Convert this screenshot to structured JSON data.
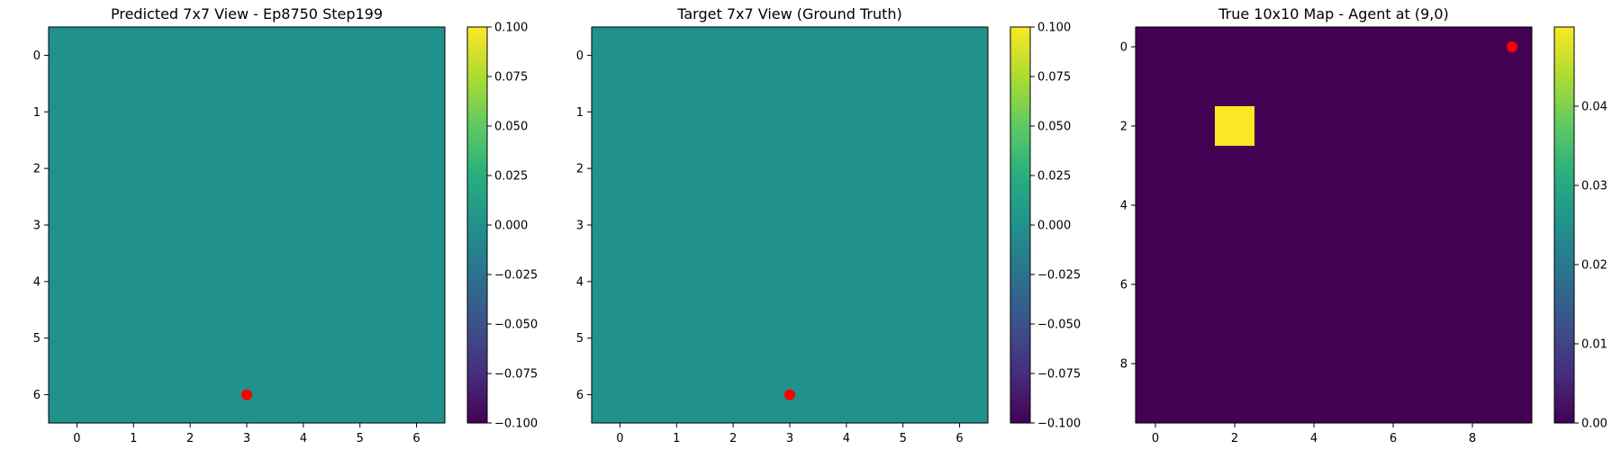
{
  "chart_data": [
    {
      "type": "heatmap",
      "title": "Predicted 7x7 View - Ep8750 Step199",
      "grid_size": 7,
      "values_uniform": 0.0,
      "x_ticks": [
        "0",
        "1",
        "2",
        "3",
        "4",
        "5",
        "6"
      ],
      "y_ticks": [
        "0",
        "1",
        "2",
        "3",
        "4",
        "5",
        "6"
      ],
      "agent_marker": {
        "x": 3,
        "y": 6,
        "color": "#ff0000"
      },
      "colorbar": {
        "min": -0.1,
        "max": 0.1,
        "colormap": "viridis",
        "ticks": [
          {
            "value": 0.1,
            "label": "0.100"
          },
          {
            "value": 0.075,
            "label": "0.075"
          },
          {
            "value": 0.05,
            "label": "0.050"
          },
          {
            "value": 0.025,
            "label": "0.025"
          },
          {
            "value": 0.0,
            "label": "0.000"
          },
          {
            "value": -0.025,
            "label": "−0.025"
          },
          {
            "value": -0.05,
            "label": "−0.050"
          },
          {
            "value": -0.075,
            "label": "−0.075"
          },
          {
            "value": -0.1,
            "label": "−0.100"
          }
        ]
      }
    },
    {
      "type": "heatmap",
      "title": "Target 7x7 View (Ground Truth)",
      "grid_size": 7,
      "values_uniform": 0.0,
      "x_ticks": [
        "0",
        "1",
        "2",
        "3",
        "4",
        "5",
        "6"
      ],
      "y_ticks": [
        "0",
        "1",
        "2",
        "3",
        "4",
        "5",
        "6"
      ],
      "agent_marker": {
        "x": 3,
        "y": 6,
        "color": "#ff0000"
      },
      "colorbar": {
        "min": -0.1,
        "max": 0.1,
        "colormap": "viridis",
        "ticks": [
          {
            "value": 0.1,
            "label": "0.100"
          },
          {
            "value": 0.075,
            "label": "0.075"
          },
          {
            "value": 0.05,
            "label": "0.050"
          },
          {
            "value": 0.025,
            "label": "0.025"
          },
          {
            "value": 0.0,
            "label": "0.000"
          },
          {
            "value": -0.025,
            "label": "−0.025"
          },
          {
            "value": -0.05,
            "label": "−0.050"
          },
          {
            "value": -0.075,
            "label": "−0.075"
          },
          {
            "value": -0.1,
            "label": "−0.100"
          }
        ]
      }
    },
    {
      "type": "heatmap",
      "title": "True 10x10 Map - Agent at (9,0)",
      "grid_size": 10,
      "values_uniform": 0.0,
      "highlight_cells": [
        {
          "x": 2,
          "y": 2,
          "value": 0.05
        }
      ],
      "x_ticks": [
        {
          "value": 0,
          "label": "0"
        },
        {
          "value": 2,
          "label": "2"
        },
        {
          "value": 4,
          "label": "4"
        },
        {
          "value": 6,
          "label": "6"
        },
        {
          "value": 8,
          "label": "8"
        }
      ],
      "y_ticks": [
        {
          "value": 0,
          "label": "0"
        },
        {
          "value": 2,
          "label": "2"
        },
        {
          "value": 4,
          "label": "4"
        },
        {
          "value": 6,
          "label": "6"
        },
        {
          "value": 8,
          "label": "8"
        }
      ],
      "agent_marker": {
        "x": 9,
        "y": 0,
        "color": "#ff0000"
      },
      "colorbar": {
        "min": 0.0,
        "max": 0.05,
        "colormap": "viridis",
        "ticks": [
          {
            "value": 0.04,
            "label": "0.04"
          },
          {
            "value": 0.03,
            "label": "0.03"
          },
          {
            "value": 0.02,
            "label": "0.02"
          },
          {
            "value": 0.01,
            "label": "0.01"
          },
          {
            "value": 0.0,
            "label": "0.00"
          }
        ]
      }
    }
  ]
}
